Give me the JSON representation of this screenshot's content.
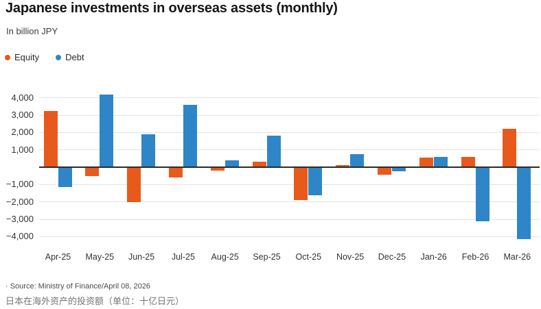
{
  "header": {
    "title": "Japanese investments in overseas assets (monthly)",
    "subtitle": "In billion JPY"
  },
  "legend": [
    {
      "label": "Equity",
      "color": "#e8591c",
      "icon": "legend-dot-orange"
    },
    {
      "label": "Debt",
      "color": "#2e86c8",
      "icon": "legend-dot-blue"
    }
  ],
  "chart_data": {
    "type": "bar",
    "title": "Japanese investments in overseas assets (monthly)",
    "subtitle": "In billion JPY",
    "unit": "billion JPY",
    "categories": [
      "Apr-25",
      "May-25",
      "Jun-25",
      "Jul-25",
      "Aug-25",
      "Sep-25",
      "Oct-25",
      "Nov-25",
      "Dec-25",
      "Jan-26",
      "Feb-26",
      "Mar-26"
    ],
    "series": [
      {
        "name": "Equity",
        "color": "#e8591c",
        "values": [
          3250,
          -500,
          -2000,
          -550,
          -150,
          300,
          -1850,
          100,
          -400,
          550,
          600,
          2200
        ]
      },
      {
        "name": "Debt",
        "color": "#2e86c8",
        "values": [
          -1100,
          4200,
          1900,
          3600,
          400,
          1800,
          -1600,
          750,
          -200,
          600,
          -3100,
          -4100
        ]
      }
    ],
    "ylim": [
      -4500,
      4500
    ],
    "y_ticks": [
      4000,
      3000,
      2000,
      1000,
      -1000,
      -2000,
      -3000,
      -4000
    ],
    "y_tick_labels": [
      "4,000",
      "3,000",
      "2,000",
      "1,000",
      "−1,000",
      "−2,000",
      "−3,000",
      "−4,000"
    ],
    "grid": "horizontal",
    "legend_position": "top-left",
    "zero_axis": true
  },
  "footer": {
    "source": "· Source: Ministry of Finance/April 08, 2026",
    "caption_cn": "日本在海外资产的投资额（单位：十亿日元）"
  },
  "colors": {
    "equity": "#e8591c",
    "debt": "#2e86c8",
    "gridline": "#e3e3e3",
    "zero_axis": "#2a2a2a",
    "title_text": "#161616",
    "muted_text": "#4a4a4a"
  }
}
